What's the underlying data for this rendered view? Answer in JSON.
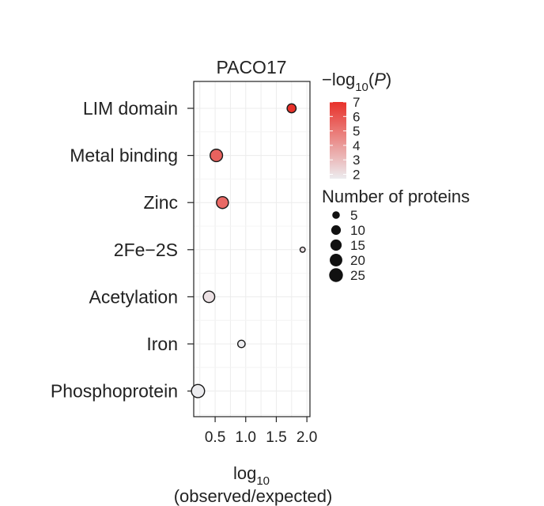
{
  "chart_data": {
    "type": "scatter",
    "panel_title": "PACO17",
    "xlabel_main": "log",
    "xlabel_sub": "10",
    "xlabel_line2": "(observed/expected)",
    "x_ticks": [
      "0.5",
      "1.0",
      "1.5",
      "2.0"
    ],
    "x_tick_values": [
      0.5,
      1.0,
      1.5,
      2.0
    ],
    "xlim": [
      0.15,
      2.05
    ],
    "categories": [
      "LIM domain",
      "Metal binding",
      "Zinc",
      "2Fe−2S",
      "Acetylation",
      "Iron",
      "Phosphoprotein"
    ],
    "points": [
      {
        "category": "LIM domain",
        "x": 1.75,
        "size": 10,
        "neglog10p": 7.0
      },
      {
        "category": "Metal binding",
        "x": 0.52,
        "size": 22,
        "neglog10p": 5.6
      },
      {
        "category": "Zinc",
        "x": 0.62,
        "size": 20,
        "neglog10p": 5.4
      },
      {
        "category": "2Fe−2S",
        "x": 1.93,
        "size": 2,
        "neglog10p": 2.0
      },
      {
        "category": "Acetylation",
        "x": 0.4,
        "size": 18,
        "neglog10p": 2.0
      },
      {
        "category": "Iron",
        "x": 0.93,
        "size": 6,
        "neglog10p": 1.7
      },
      {
        "category": "Phosphoprotein",
        "x": 0.22,
        "size": 25,
        "neglog10p": 1.7
      }
    ],
    "color_legend": {
      "title_prefix": "−log",
      "title_sub": "10",
      "title_open": "(",
      "title_var": "P",
      "title_close": ")",
      "ticks": [
        "7",
        "6",
        "5",
        "4",
        "3",
        "2"
      ],
      "tick_values": [
        7,
        6,
        5,
        4,
        3,
        2
      ],
      "range": [
        1.7,
        7.0
      ],
      "color_low": "#ececef",
      "color_high": "#e8312a"
    },
    "size_legend": {
      "title": "Number of proteins",
      "entries": [
        "5",
        "10",
        "15",
        "20",
        "25"
      ],
      "values": [
        5,
        10,
        15,
        20,
        25
      ]
    },
    "grid": true,
    "legend_position": "right"
  }
}
